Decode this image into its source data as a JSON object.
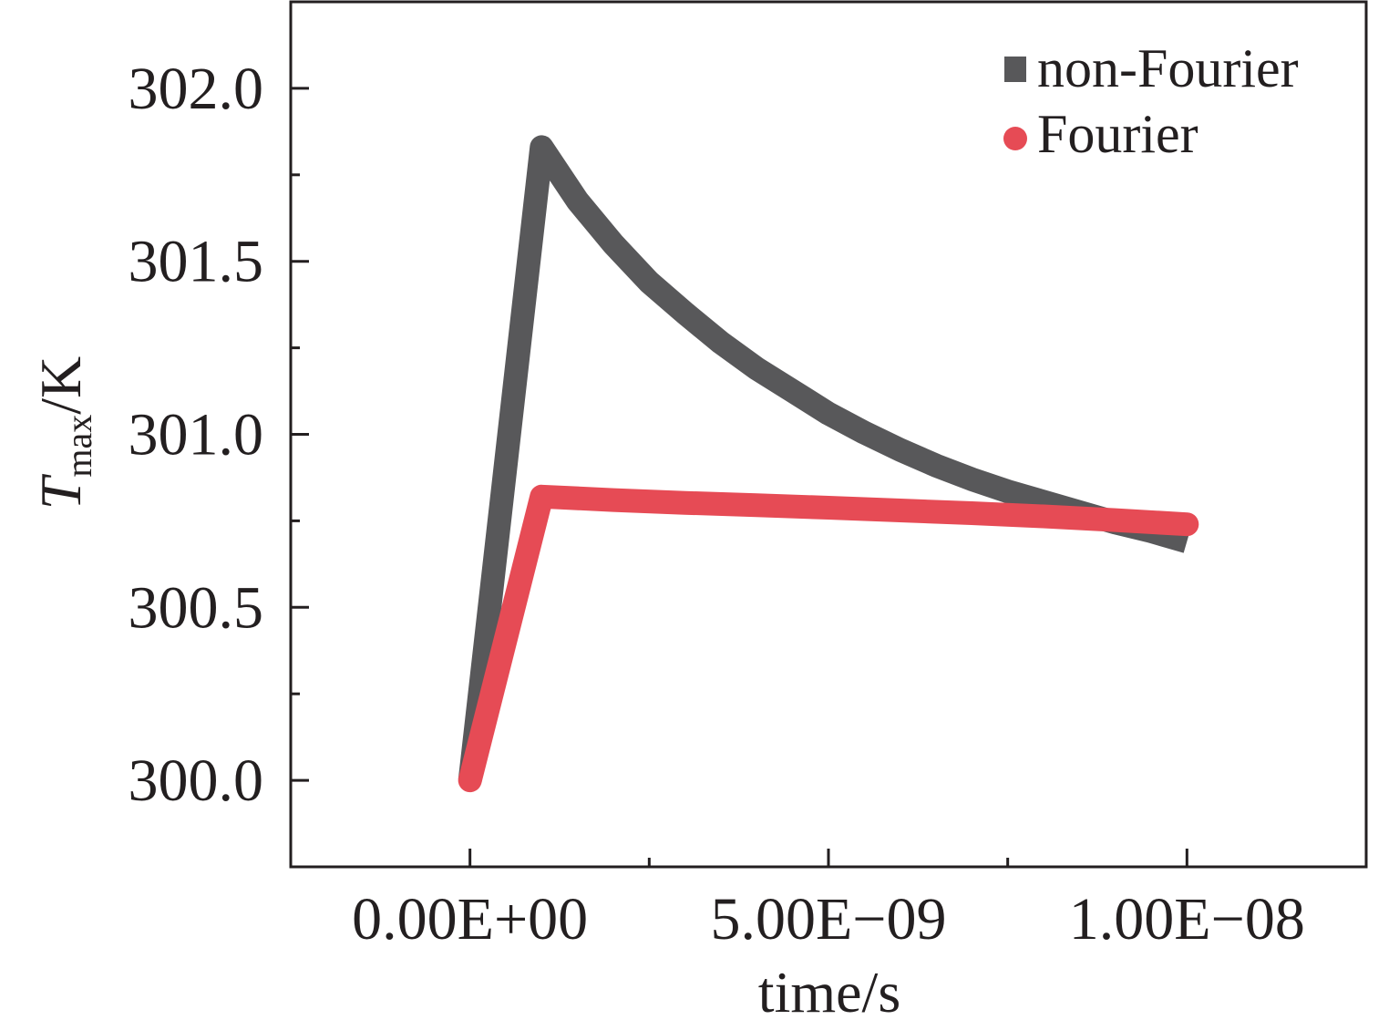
{
  "chart_data": {
    "type": "line",
    "title": "",
    "xlabel": "time/s",
    "ylabel": {
      "main": "T",
      "subscript": "max",
      "unit": "/K"
    },
    "xlim": [
      -2.5e-09,
      1.25e-08
    ],
    "ylim": [
      299.75,
      302.25
    ],
    "x_ticks": [
      {
        "value": 0,
        "label": "0.00E+00"
      },
      {
        "value": 5e-09,
        "label": "5.00E−09"
      },
      {
        "value": 1e-08,
        "label": "1.00E−08"
      }
    ],
    "x_minor_ticks": [
      2.5e-09,
      7.5e-09
    ],
    "y_ticks": [
      {
        "value": 300.0,
        "label": "300.0"
      },
      {
        "value": 300.5,
        "label": "300.5"
      },
      {
        "value": 301.0,
        "label": "301.0"
      },
      {
        "value": 301.5,
        "label": "301.5"
      },
      {
        "value": 302.0,
        "label": "302.0"
      }
    ],
    "y_minor_ticks": [
      300.25,
      300.75,
      301.25,
      301.75
    ],
    "grid": false,
    "legend_position": "top-right",
    "series": [
      {
        "name": "non-Fourier",
        "color": "#58585a",
        "marker": "square",
        "x": [
          0,
          1e-09,
          1.5e-09,
          2e-09,
          2.5e-09,
          3e-09,
          3.5e-09,
          4e-09,
          4.5e-09,
          5e-09,
          5.5e-09,
          6e-09,
          6.5e-09,
          7e-09,
          7.5e-09,
          8e-09,
          8.5e-09,
          9e-09,
          9.5e-09,
          1e-08
        ],
        "y": [
          300.0,
          301.83,
          301.675,
          301.55,
          301.44,
          301.35,
          301.265,
          301.19,
          301.125,
          301.06,
          301.005,
          300.955,
          300.91,
          300.87,
          300.835,
          300.805,
          300.775,
          300.745,
          300.72,
          300.69
        ]
      },
      {
        "name": "Fourier",
        "color": "#e64b55",
        "marker": "circle",
        "x": [
          0,
          1e-09,
          2e-09,
          3e-09,
          4e-09,
          5e-09,
          6e-09,
          7e-09,
          8e-09,
          9e-09,
          1e-08
        ],
        "y": [
          300.0,
          300.82,
          300.81,
          300.802,
          300.795,
          300.788,
          300.78,
          300.772,
          300.763,
          300.752,
          300.74
        ]
      }
    ]
  }
}
